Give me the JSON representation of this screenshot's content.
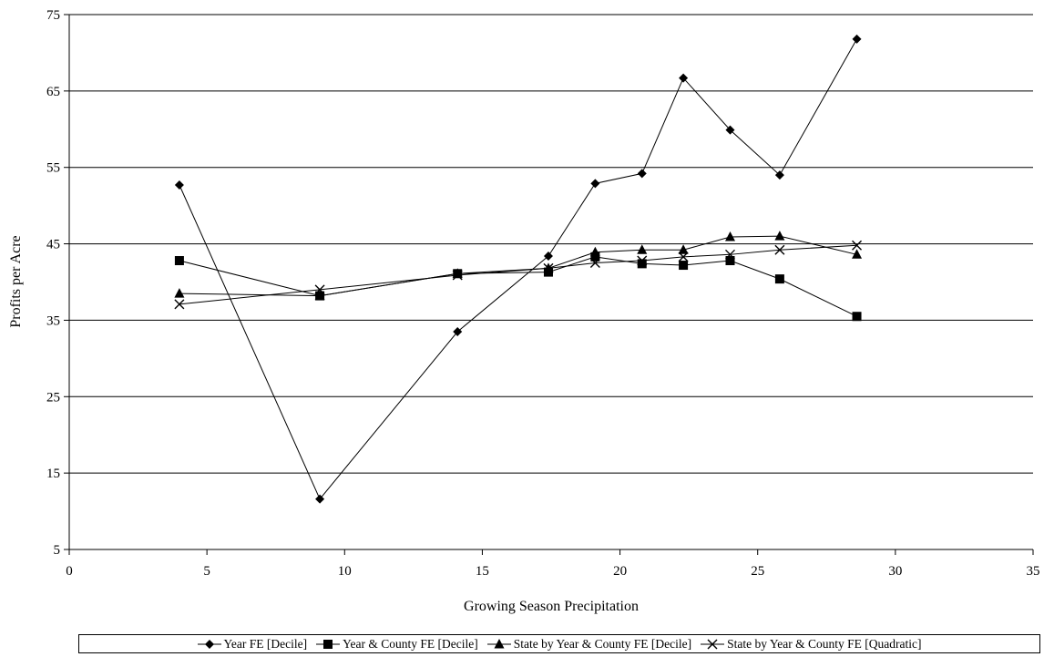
{
  "chart_data": {
    "type": "line",
    "title": "",
    "xlabel": "Growing Season Precipitation",
    "ylabel": "Profits per Acre",
    "xlim": [
      0,
      35
    ],
    "ylim": [
      5,
      75
    ],
    "xticks": [
      0,
      5,
      10,
      15,
      20,
      25,
      30,
      35
    ],
    "yticks": [
      5,
      15,
      25,
      35,
      45,
      55,
      65,
      75
    ],
    "grid": "horizontal",
    "legend_position": "bottom",
    "x": [
      4.0,
      9.1,
      14.1,
      17.4,
      19.1,
      20.8,
      22.3,
      24.0,
      25.8,
      28.6
    ],
    "series": [
      {
        "name": "Year FE [Decile]",
        "marker": "diamond",
        "values": [
          52.7,
          11.6,
          33.5,
          43.4,
          52.9,
          54.2,
          66.7,
          59.9,
          54.0,
          71.8
        ]
      },
      {
        "name": "Year & County FE [Decile]",
        "marker": "square",
        "values": [
          42.8,
          38.2,
          41.1,
          41.3,
          43.3,
          42.4,
          42.2,
          42.8,
          40.4,
          35.5
        ]
      },
      {
        "name": "State by Year & County FE [Decile]",
        "marker": "triangle",
        "values": [
          38.5,
          38.2,
          41.1,
          41.8,
          43.9,
          44.2,
          44.2,
          45.9,
          46.0,
          43.6
        ]
      },
      {
        "name": "State by Year & County FE [Quadratic]",
        "marker": "x",
        "values": [
          37.1,
          39.0,
          40.9,
          41.8,
          42.5,
          42.8,
          43.3,
          43.6,
          44.2,
          44.8
        ]
      }
    ]
  }
}
